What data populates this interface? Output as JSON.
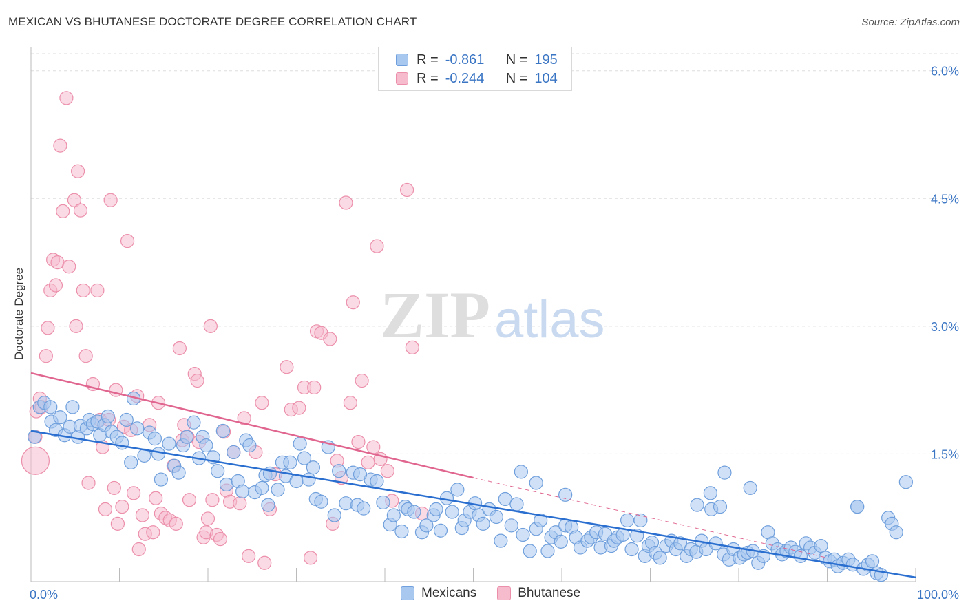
{
  "title": "MEXICAN VS BHUTANESE DOCTORATE DEGREE CORRELATION CHART",
  "source": "Source: ZipAtlas.com",
  "watermark": {
    "zip": "ZIP",
    "atlas": "atlas"
  },
  "legend": {
    "rows": [
      {
        "r_label": "R =",
        "r_value": "-0.861",
        "n_label": "N =",
        "n_value": "195"
      },
      {
        "r_label": "R =",
        "r_value": "-0.244",
        "n_label": "N =",
        "n_value": "104"
      }
    ]
  },
  "bottom_legend": {
    "series1": "Mexicans",
    "series2": "Bhutanese"
  },
  "colors": {
    "mexicans_fill": "#a9c8f0",
    "mexicans_stroke": "#6f9fdc",
    "mexicans_line": "#2a6fd0",
    "bhutanese_fill": "#f6bccd",
    "bhutanese_stroke": "#ec8fab",
    "bhutanese_line": "#e06690",
    "tick_label": "#3a75c4",
    "grid": "#dddddd"
  },
  "chart_data": {
    "type": "scatter",
    "title": "MEXICAN VS BHUTANESE DOCTORATE DEGREE CORRELATION CHART",
    "xlabel": "",
    "ylabel": "Doctorate Degree",
    "xlim": [
      0,
      100
    ],
    "ylim": [
      0,
      6.2
    ],
    "x_tick_labels": [
      "0.0%",
      "100.0%"
    ],
    "y_ticks": [
      1.5,
      3.0,
      4.5,
      6.0
    ],
    "y_tick_labels": [
      "1.5%",
      "3.0%",
      "4.5%",
      "6.0%"
    ],
    "grid": "horizontal dashed",
    "legend_position": "top-center",
    "series": [
      {
        "name": "Mexicans",
        "trend": {
          "x": [
            0,
            100
          ],
          "y": [
            1.77,
            0.05
          ],
          "style": "solid"
        },
        "points": [
          [
            0.4,
            1.7
          ],
          [
            1,
            2.05
          ],
          [
            1.5,
            2.1
          ],
          [
            2.2,
            2.05
          ],
          [
            2.3,
            1.88
          ],
          [
            2.8,
            1.78
          ],
          [
            3.3,
            1.93
          ],
          [
            3.8,
            1.72
          ],
          [
            4.4,
            1.82
          ],
          [
            4.7,
            2.05
          ],
          [
            5.3,
            1.7
          ],
          [
            5.6,
            1.83
          ],
          [
            6.3,
            1.8
          ],
          [
            6.6,
            1.9
          ],
          [
            7,
            1.85
          ],
          [
            7.5,
            1.88
          ],
          [
            7.8,
            1.72
          ],
          [
            8.3,
            1.84
          ],
          [
            8.7,
            1.94
          ],
          [
            9.1,
            1.76
          ],
          [
            9.7,
            1.7
          ],
          [
            10.3,
            1.63
          ],
          [
            10.8,
            1.9
          ],
          [
            11.3,
            1.4
          ],
          [
            11.6,
            2.15
          ],
          [
            12,
            1.8
          ],
          [
            12.8,
            1.48
          ],
          [
            13.4,
            1.75
          ],
          [
            14,
            1.68
          ],
          [
            14.4,
            1.5
          ],
          [
            14.7,
            1.2
          ],
          [
            15.6,
            1.62
          ],
          [
            16.2,
            1.36
          ],
          [
            16.7,
            1.28
          ],
          [
            17.2,
            1.6
          ],
          [
            17.6,
            1.7
          ],
          [
            18.4,
            1.87
          ],
          [
            19,
            1.45
          ],
          [
            19.4,
            1.7
          ],
          [
            19.8,
            1.6
          ],
          [
            20.6,
            1.46
          ],
          [
            21.1,
            1.3
          ],
          [
            21.7,
            1.77
          ],
          [
            22.1,
            1.14
          ],
          [
            22.9,
            1.52
          ],
          [
            23.4,
            1.18
          ],
          [
            23.9,
            1.06
          ],
          [
            24.3,
            1.66
          ],
          [
            24.7,
            1.6
          ],
          [
            25.3,
            1.05
          ],
          [
            26.1,
            1.1
          ],
          [
            26.5,
            1.25
          ],
          [
            26.8,
            0.9
          ],
          [
            27,
            1.27
          ],
          [
            27.9,
            1.08
          ],
          [
            28.4,
            1.4
          ],
          [
            28.8,
            1.24
          ],
          [
            29.3,
            1.4
          ],
          [
            30,
            1.18
          ],
          [
            30.4,
            1.62
          ],
          [
            30.9,
            1.45
          ],
          [
            31.4,
            1.2
          ],
          [
            32.2,
            0.97
          ],
          [
            31.9,
            1.34
          ],
          [
            32.8,
            0.94
          ],
          [
            33.6,
            1.58
          ],
          [
            34.3,
            0.78
          ],
          [
            34.8,
            1.3
          ],
          [
            35.6,
            0.92
          ],
          [
            36.4,
            1.28
          ],
          [
            36.9,
            0.9
          ],
          [
            37.6,
            0.86
          ],
          [
            38.4,
            1.2
          ],
          [
            39.1,
            1.18
          ],
          [
            39.8,
            0.93
          ],
          [
            40.6,
            0.67
          ],
          [
            41,
            0.78
          ],
          [
            41.9,
            0.59
          ],
          [
            42.3,
            0.88
          ],
          [
            42.6,
            0.85
          ],
          [
            43.3,
            0.82
          ],
          [
            44.2,
            0.58
          ],
          [
            44.7,
            0.66
          ],
          [
            45.5,
            0.78
          ],
          [
            45.8,
            0.85
          ],
          [
            46.3,
            0.6
          ],
          [
            47,
            0.98
          ],
          [
            47.6,
            0.82
          ],
          [
            48.2,
            1.08
          ],
          [
            48.7,
            0.63
          ],
          [
            49,
            0.72
          ],
          [
            49.6,
            0.82
          ],
          [
            50.2,
            0.92
          ],
          [
            50.6,
            0.78
          ],
          [
            51.1,
            0.68
          ],
          [
            51.8,
            0.85
          ],
          [
            52.6,
            0.76
          ],
          [
            53.1,
            0.48
          ],
          [
            53.6,
            0.97
          ],
          [
            54.3,
            0.66
          ],
          [
            54.9,
            0.91
          ],
          [
            55.6,
            0.55
          ],
          [
            56.4,
            0.36
          ],
          [
            57.1,
            0.62
          ],
          [
            57.6,
            0.72
          ],
          [
            58.4,
            0.36
          ],
          [
            58.8,
            0.52
          ],
          [
            59.3,
            0.58
          ],
          [
            59.9,
            0.47
          ],
          [
            60.4,
            0.66
          ],
          [
            61.1,
            0.64
          ],
          [
            61.6,
            0.52
          ],
          [
            62.1,
            0.4
          ],
          [
            62.9,
            0.48
          ],
          [
            63.3,
            0.52
          ],
          [
            63.9,
            0.58
          ],
          [
            64.4,
            0.4
          ],
          [
            64.9,
            0.56
          ],
          [
            65.6,
            0.42
          ],
          [
            65.9,
            0.48
          ],
          [
            66.3,
            0.52
          ],
          [
            66.9,
            0.55
          ],
          [
            67.4,
            0.72
          ],
          [
            67.9,
            0.38
          ],
          [
            68.5,
            0.54
          ],
          [
            68.9,
            0.72
          ],
          [
            69.4,
            0.3
          ],
          [
            69.8,
            0.42
          ],
          [
            70.2,
            0.46
          ],
          [
            70.6,
            0.34
          ],
          [
            71.1,
            0.28
          ],
          [
            71.8,
            0.42
          ],
          [
            72.4,
            0.48
          ],
          [
            72.9,
            0.38
          ],
          [
            73.4,
            0.45
          ],
          [
            74.1,
            0.3
          ],
          [
            74.6,
            0.38
          ],
          [
            75.2,
            0.35
          ],
          [
            75.8,
            0.48
          ],
          [
            76.3,
            0.38
          ],
          [
            76.9,
            0.85
          ],
          [
            77.4,
            0.45
          ],
          [
            77.9,
            0.88
          ],
          [
            78.3,
            0.32
          ],
          [
            78.9,
            0.26
          ],
          [
            79.4,
            0.38
          ],
          [
            80.1,
            0.28
          ],
          [
            80.6,
            0.32
          ],
          [
            81,
            0.34
          ],
          [
            81.6,
            0.36
          ],
          [
            82.2,
            0.22
          ],
          [
            82.8,
            0.3
          ],
          [
            83.3,
            0.58
          ],
          [
            83.8,
            0.45
          ],
          [
            84.4,
            0.38
          ],
          [
            84.9,
            0.32
          ],
          [
            85.4,
            0.36
          ],
          [
            85.9,
            0.4
          ],
          [
            86.4,
            0.35
          ],
          [
            87,
            0.3
          ],
          [
            87.6,
            0.45
          ],
          [
            88.1,
            0.4
          ],
          [
            88.6,
            0.34
          ],
          [
            89.3,
            0.42
          ],
          [
            89.8,
            0.28
          ],
          [
            90.3,
            0.24
          ],
          [
            90.8,
            0.26
          ],
          [
            91.2,
            0.18
          ],
          [
            91.8,
            0.22
          ],
          [
            92.4,
            0.26
          ],
          [
            92.9,
            0.2
          ],
          [
            93.4,
            0.88
          ],
          [
            94.1,
            0.15
          ],
          [
            94.6,
            0.2
          ],
          [
            95.1,
            0.24
          ],
          [
            95.6,
            0.1
          ],
          [
            96.1,
            0.08
          ],
          [
            96.9,
            0.75
          ],
          [
            97.3,
            0.68
          ],
          [
            97.8,
            0.58
          ],
          [
            98.9,
            1.17
          ],
          [
            93.4,
            0.88
          ],
          [
            60.4,
            1.02
          ],
          [
            55.4,
            1.29
          ],
          [
            76.8,
            1.04
          ],
          [
            78.4,
            1.28
          ],
          [
            81.3,
            1.1
          ],
          [
            37.2,
            1.26
          ],
          [
            57.1,
            1.16
          ],
          [
            75.3,
            0.9
          ]
        ]
      },
      {
        "name": "Bhutanese",
        "trend": {
          "x": [
            0,
            50
          ],
          "y": [
            2.45,
            1.22
          ],
          "style": "solid",
          "extension": {
            "x": [
              50,
              90
            ],
            "y": [
              1.22,
              0.28
            ],
            "style": "dashed"
          }
        },
        "points": [
          [
            0.5,
            1.7
          ],
          [
            0.6,
            2.0
          ],
          [
            1,
            2.15
          ],
          [
            1.2,
            2.05
          ],
          [
            1.7,
            2.65
          ],
          [
            1.9,
            2.98
          ],
          [
            2.2,
            3.42
          ],
          [
            2.5,
            3.78
          ],
          [
            2.8,
            3.48
          ],
          [
            3,
            3.75
          ],
          [
            3.3,
            5.12
          ],
          [
            3.6,
            4.35
          ],
          [
            4,
            5.68
          ],
          [
            4.3,
            3.7
          ],
          [
            4.9,
            4.48
          ],
          [
            5.1,
            3.0
          ],
          [
            5.3,
            4.82
          ],
          [
            5.6,
            4.36
          ],
          [
            5.9,
            3.42
          ],
          [
            6.2,
            2.65
          ],
          [
            6.5,
            1.16
          ],
          [
            7,
            2.32
          ],
          [
            7.5,
            3.42
          ],
          [
            7.8,
            1.9
          ],
          [
            8.1,
            1.58
          ],
          [
            8.4,
            0.85
          ],
          [
            8.8,
            1.9
          ],
          [
            9,
            4.48
          ],
          [
            9.4,
            1.1
          ],
          [
            9.6,
            2.25
          ],
          [
            9.8,
            0.68
          ],
          [
            10.3,
            0.88
          ],
          [
            10.5,
            1.82
          ],
          [
            10.9,
            4.0
          ],
          [
            11.3,
            1.78
          ],
          [
            11.6,
            1.04
          ],
          [
            12,
            2.18
          ],
          [
            12.2,
            0.38
          ],
          [
            12.6,
            0.78
          ],
          [
            12.9,
            0.56
          ],
          [
            13.4,
            1.84
          ],
          [
            13.8,
            0.58
          ],
          [
            14.1,
            0.98
          ],
          [
            14.4,
            2.1
          ],
          [
            14.7,
            0.8
          ],
          [
            15.2,
            0.75
          ],
          [
            15.7,
            0.72
          ],
          [
            16.1,
            1.36
          ],
          [
            16.4,
            0.68
          ],
          [
            16.8,
            2.74
          ],
          [
            17.1,
            1.66
          ],
          [
            17.3,
            1.84
          ],
          [
            17.7,
            1.7
          ],
          [
            17.9,
            0.96
          ],
          [
            18.5,
            2.44
          ],
          [
            18.8,
            2.36
          ],
          [
            19,
            1.64
          ],
          [
            19.5,
            0.52
          ],
          [
            19.8,
            0.58
          ],
          [
            20,
            0.74
          ],
          [
            20.5,
            0.96
          ],
          [
            20.3,
            3.0
          ],
          [
            21,
            0.55
          ],
          [
            21.4,
            0.5
          ],
          [
            21.8,
            1.76
          ],
          [
            22.1,
            1.07
          ],
          [
            22.5,
            0.94
          ],
          [
            22.9,
            1.52
          ],
          [
            23.6,
            0.92
          ],
          [
            24.1,
            1.92
          ],
          [
            24.6,
            0.3
          ],
          [
            25.4,
            1.52
          ],
          [
            26.1,
            2.1
          ],
          [
            26.4,
            0.22
          ],
          [
            27,
            0.85
          ],
          [
            27.6,
            1.26
          ],
          [
            28.9,
            2.52
          ],
          [
            29.4,
            2.02
          ],
          [
            30.3,
            2.04
          ],
          [
            30.9,
            2.28
          ],
          [
            31.6,
            0.28
          ],
          [
            32,
            2.28
          ],
          [
            32.3,
            2.94
          ],
          [
            32.8,
            2.92
          ],
          [
            33.8,
            2.85
          ],
          [
            34.1,
            0.68
          ],
          [
            34.6,
            1.42
          ],
          [
            35.1,
            1.22
          ],
          [
            35.6,
            4.45
          ],
          [
            36.1,
            2.1
          ],
          [
            36.4,
            3.28
          ],
          [
            37,
            1.64
          ],
          [
            37.4,
            2.36
          ],
          [
            38.1,
            1.4
          ],
          [
            38.7,
            1.58
          ],
          [
            39.1,
            3.94
          ],
          [
            39.5,
            1.44
          ],
          [
            40.3,
            1.3
          ],
          [
            40.8,
            0.95
          ],
          [
            42.5,
            4.6
          ],
          [
            43.1,
            2.75
          ],
          [
            44.2,
            0.8
          ],
          [
            0.5,
            1.42
          ]
        ]
      }
    ]
  }
}
